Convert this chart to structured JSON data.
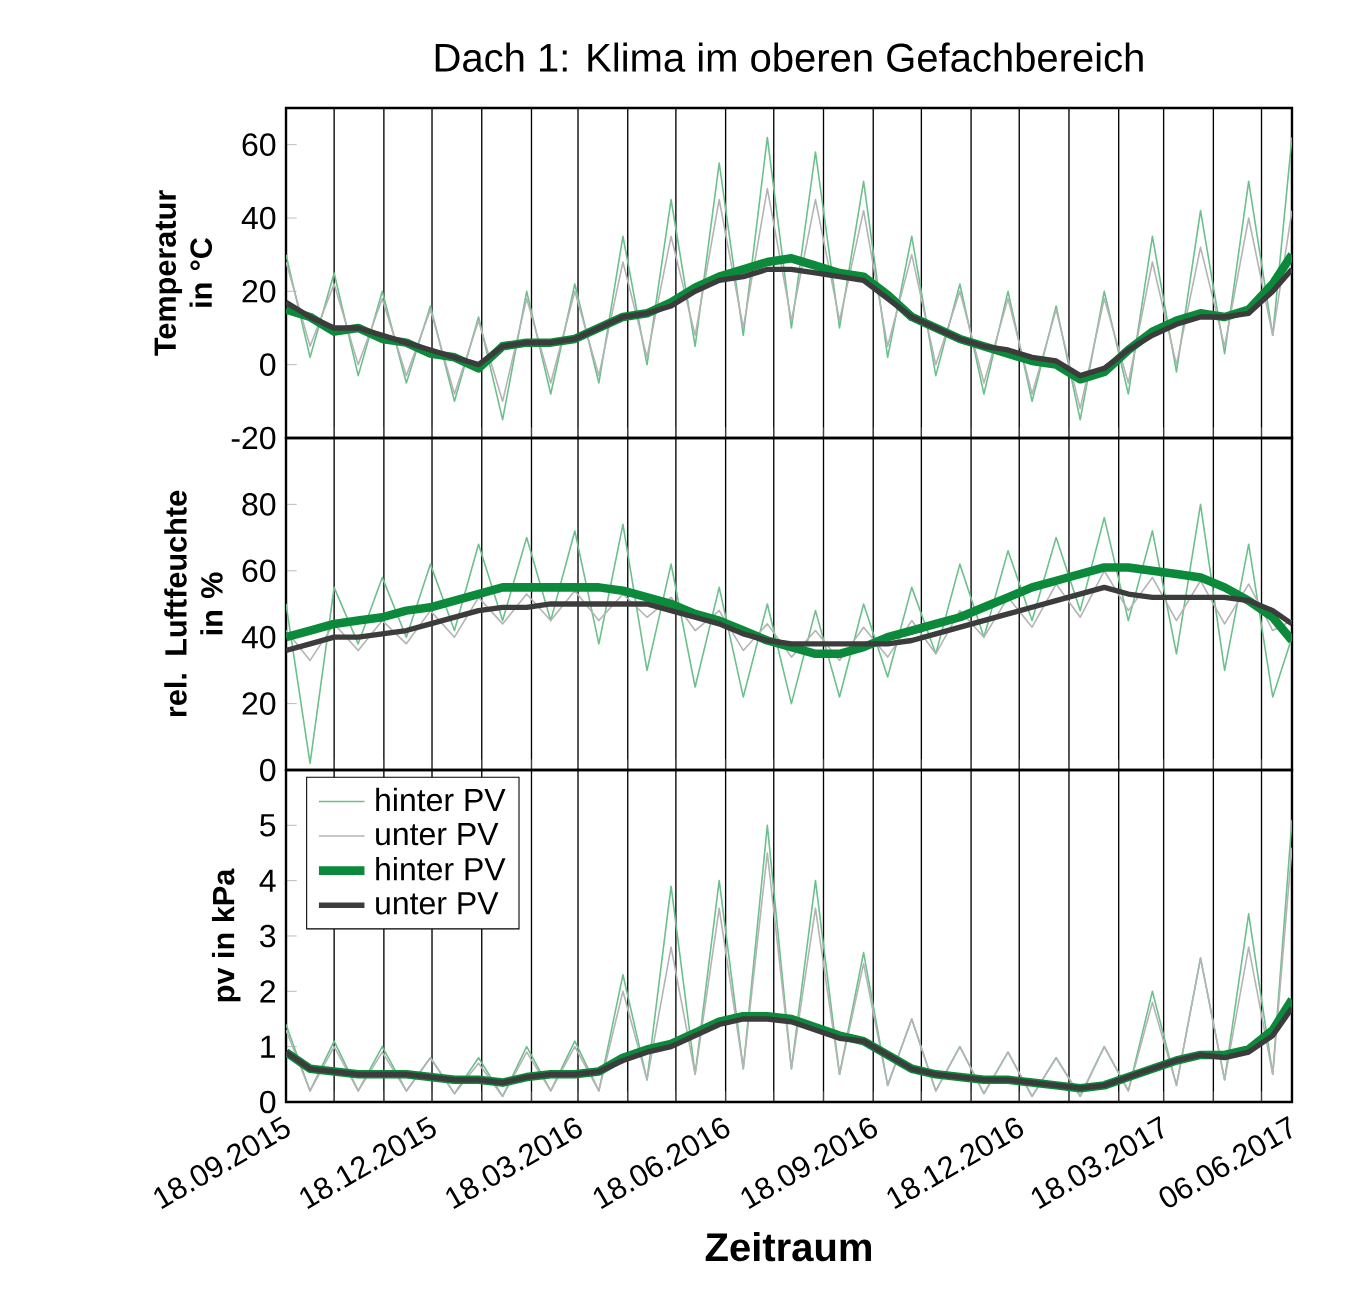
{
  "chart_data": [
    {
      "type": "line",
      "title": "Dach 1: Klima im oberen Gefachbereich",
      "ylabel": "Temperatur in °C",
      "x": [
        "2015-09-18",
        "2015-10-03",
        "2015-10-18",
        "2015-11-02",
        "2015-11-17",
        "2015-12-02",
        "2015-12-17",
        "2016-01-01",
        "2016-01-16",
        "2016-01-31",
        "2016-02-15",
        "2016-03-01",
        "2016-03-16",
        "2016-03-31",
        "2016-04-15",
        "2016-04-30",
        "2016-05-15",
        "2016-05-30",
        "2016-06-14",
        "2016-06-29",
        "2016-07-14",
        "2016-07-29",
        "2016-08-13",
        "2016-08-28",
        "2016-09-12",
        "2016-09-27",
        "2016-10-12",
        "2016-10-27",
        "2016-11-11",
        "2016-11-26",
        "2016-12-11",
        "2016-12-26",
        "2017-01-10",
        "2017-01-25",
        "2017-02-09",
        "2017-02-24",
        "2017-03-11",
        "2017-03-26",
        "2017-04-10",
        "2017-04-25",
        "2017-05-10",
        "2017-05-25",
        "2017-06-06"
      ],
      "series": [
        {
          "color": "#6cc08b",
          "values": [
            30,
            2,
            25,
            -3,
            20,
            -5,
            16,
            -10,
            13,
            -15,
            20,
            -8,
            22,
            -5,
            35,
            0,
            45,
            5,
            55,
            8,
            62,
            10,
            58,
            10,
            50,
            2,
            35,
            -3,
            22,
            -8,
            20,
            -10,
            16,
            -15,
            20,
            -8,
            35,
            -2,
            42,
            3,
            50,
            8,
            62
          ]
        },
        {
          "color": "#b4b4b4",
          "values": [
            28,
            5,
            22,
            0,
            18,
            -3,
            15,
            -8,
            12,
            -10,
            18,
            -5,
            20,
            -3,
            28,
            2,
            35,
            8,
            45,
            10,
            48,
            12,
            45,
            12,
            42,
            5,
            30,
            0,
            20,
            -5,
            18,
            -8,
            15,
            -12,
            18,
            -5,
            28,
            0,
            32,
            5,
            40,
            8,
            42
          ]
        },
        {
          "color": "#0a8a3a",
          "values": [
            15,
            13,
            9,
            10,
            7,
            6,
            3,
            2,
            -1,
            5,
            6,
            6,
            7,
            10,
            13,
            14,
            17,
            21,
            24,
            26,
            28,
            29,
            27,
            25,
            24,
            19,
            13,
            10,
            7,
            5,
            3,
            1,
            0,
            -4,
            -2,
            4,
            9,
            12,
            14,
            13,
            15,
            22,
            30
          ]
        },
        {
          "color": "#3c3c3c",
          "values": [
            17,
            13,
            10,
            10,
            8,
            6,
            4,
            2,
            0,
            5,
            6,
            6,
            7,
            10,
            13,
            14,
            16,
            20,
            23,
            24,
            26,
            26,
            25,
            24,
            23,
            18,
            13,
            10,
            7,
            5,
            4,
            2,
            1,
            -3,
            -1,
            4,
            8,
            11,
            13,
            13,
            14,
            20,
            26
          ]
        }
      ],
      "xlim": [
        "2015-09-18",
        "2017-06-06"
      ],
      "ylim": [
        -20,
        70
      ],
      "yticks": [
        -20,
        0,
        20,
        40,
        60
      ],
      "xticks": [
        {
          "value": "2015-09-18",
          "label": null
        },
        {
          "value": "2015-10-18",
          "label": null
        },
        {
          "value": "2015-11-18",
          "label": null
        },
        {
          "value": "2015-12-18",
          "label": null
        },
        {
          "value": "2016-01-18",
          "label": null
        },
        {
          "value": "2016-02-18",
          "label": null
        },
        {
          "value": "2016-03-18",
          "label": null
        },
        {
          "value": "2016-04-18",
          "label": null
        },
        {
          "value": "2016-05-18",
          "label": null
        },
        {
          "value": "2016-06-18",
          "label": null
        },
        {
          "value": "2016-07-18",
          "label": null
        },
        {
          "value": "2016-08-18",
          "label": null
        },
        {
          "value": "2016-09-18",
          "label": null
        },
        {
          "value": "2016-10-18",
          "label": null
        },
        {
          "value": "2016-11-18",
          "label": null
        },
        {
          "value": "2016-12-18",
          "label": null
        },
        {
          "value": "2017-01-18",
          "label": null
        },
        {
          "value": "2017-02-18",
          "label": null
        },
        {
          "value": "2017-03-18",
          "label": null
        },
        {
          "value": "2017-04-18",
          "label": null
        },
        {
          "value": "2017-05-18",
          "label": null
        },
        {
          "value": "2017-06-06",
          "label": null
        }
      ],
      "grid": "x",
      "tick_labels": "y"
    },
    {
      "type": "line",
      "ylabel": "rel. Luftfeuchte in %",
      "x": [
        "2015-09-18",
        "2015-10-03",
        "2015-10-18",
        "2015-11-02",
        "2015-11-17",
        "2015-12-02",
        "2015-12-17",
        "2016-01-01",
        "2016-01-16",
        "2016-01-31",
        "2016-02-15",
        "2016-03-01",
        "2016-03-16",
        "2016-03-31",
        "2016-04-15",
        "2016-04-30",
        "2016-05-15",
        "2016-05-30",
        "2016-06-14",
        "2016-06-29",
        "2016-07-14",
        "2016-07-29",
        "2016-08-13",
        "2016-08-28",
        "2016-09-12",
        "2016-09-27",
        "2016-10-12",
        "2016-10-27",
        "2016-11-11",
        "2016-11-26",
        "2016-12-11",
        "2016-12-26",
        "2017-01-10",
        "2017-01-25",
        "2017-02-09",
        "2017-02-24",
        "2017-03-11",
        "2017-03-26",
        "2017-04-10",
        "2017-04-25",
        "2017-05-10",
        "2017-05-25",
        "2017-06-06"
      ],
      "series": [
        {
          "color": "#6cc08b",
          "values": [
            50,
            2,
            55,
            38,
            58,
            40,
            62,
            42,
            68,
            45,
            70,
            45,
            72,
            38,
            74,
            30,
            62,
            25,
            55,
            22,
            50,
            20,
            48,
            22,
            50,
            28,
            55,
            35,
            62,
            40,
            66,
            45,
            70,
            48,
            76,
            45,
            72,
            35,
            80,
            30,
            68,
            22,
            40
          ]
        },
        {
          "color": "#b4b4b4",
          "values": [
            42,
            33,
            44,
            36,
            45,
            38,
            48,
            40,
            52,
            44,
            53,
            45,
            54,
            45,
            53,
            46,
            52,
            42,
            48,
            36,
            44,
            34,
            42,
            33,
            43,
            34,
            45,
            35,
            48,
            40,
            52,
            43,
            56,
            46,
            60,
            48,
            58,
            45,
            57,
            44,
            56,
            42,
            45
          ]
        },
        {
          "color": "#0a8a3a",
          "values": [
            40,
            42,
            44,
            45,
            46,
            48,
            49,
            51,
            53,
            55,
            55,
            55,
            55,
            55,
            54,
            52,
            50,
            47,
            45,
            42,
            39,
            37,
            35,
            35,
            37,
            40,
            42,
            44,
            46,
            49,
            52,
            55,
            57,
            59,
            61,
            61,
            60,
            59,
            58,
            55,
            51,
            46,
            39
          ]
        },
        {
          "color": "#3c3c3c",
          "values": [
            36,
            38,
            40,
            40,
            41,
            42,
            44,
            46,
            48,
            49,
            49,
            50,
            50,
            50,
            50,
            50,
            48,
            46,
            44,
            41,
            39,
            38,
            38,
            38,
            38,
            38,
            39,
            41,
            43,
            45,
            47,
            49,
            51,
            53,
            55,
            53,
            52,
            52,
            52,
            52,
            51,
            48,
            44
          ]
        }
      ],
      "xlim": [
        "2015-09-18",
        "2017-06-06"
      ],
      "ylim": [
        0,
        100
      ],
      "yticks": [
        0,
        20,
        40,
        60,
        80
      ],
      "xticks": [
        {
          "value": "2015-09-18",
          "label": null
        },
        {
          "value": "2015-10-18",
          "label": null
        },
        {
          "value": "2015-11-18",
          "label": null
        },
        {
          "value": "2015-12-18",
          "label": null
        },
        {
          "value": "2016-01-18",
          "label": null
        },
        {
          "value": "2016-02-18",
          "label": null
        },
        {
          "value": "2016-03-18",
          "label": null
        },
        {
          "value": "2016-04-18",
          "label": null
        },
        {
          "value": "2016-05-18",
          "label": null
        },
        {
          "value": "2016-06-18",
          "label": null
        },
        {
          "value": "2016-07-18",
          "label": null
        },
        {
          "value": "2016-08-18",
          "label": null
        },
        {
          "value": "2016-09-18",
          "label": null
        },
        {
          "value": "2016-10-18",
          "label": null
        },
        {
          "value": "2016-11-18",
          "label": null
        },
        {
          "value": "2016-12-18",
          "label": null
        },
        {
          "value": "2017-01-18",
          "label": null
        },
        {
          "value": "2017-02-18",
          "label": null
        },
        {
          "value": "2017-03-18",
          "label": null
        },
        {
          "value": "2017-04-18",
          "label": null
        },
        {
          "value": "2017-05-18",
          "label": null
        },
        {
          "value": "2017-06-06",
          "label": null
        }
      ],
      "grid": "x",
      "tick_labels": "y"
    },
    {
      "type": "line",
      "xlabel": "Zeitraum",
      "ylabel": "pv in kPa",
      "x": [
        "2015-09-18",
        "2015-10-03",
        "2015-10-18",
        "2015-11-02",
        "2015-11-17",
        "2015-12-02",
        "2015-12-17",
        "2016-01-01",
        "2016-01-16",
        "2016-01-31",
        "2016-02-15",
        "2016-03-01",
        "2016-03-16",
        "2016-03-31",
        "2016-04-15",
        "2016-04-30",
        "2016-05-15",
        "2016-05-30",
        "2016-06-14",
        "2016-06-29",
        "2016-07-14",
        "2016-07-29",
        "2016-08-13",
        "2016-08-28",
        "2016-09-12",
        "2016-09-27",
        "2016-10-12",
        "2016-10-27",
        "2016-11-11",
        "2016-11-26",
        "2016-12-11",
        "2016-12-26",
        "2017-01-10",
        "2017-01-25",
        "2017-02-09",
        "2017-02-24",
        "2017-03-11",
        "2017-03-26",
        "2017-04-10",
        "2017-04-25",
        "2017-05-10",
        "2017-05-25",
        "2017-06-06"
      ],
      "series": [
        {
          "name": "hinter PV",
          "color": "#6cc08b",
          "values": [
            1.4,
            0.2,
            1.1,
            0.2,
            1.0,
            0.2,
            0.8,
            0.15,
            0.8,
            0.1,
            1.0,
            0.2,
            1.1,
            0.2,
            2.3,
            0.4,
            3.9,
            0.5,
            4.0,
            0.6,
            5.0,
            0.6,
            4.0,
            0.5,
            2.7,
            0.3,
            1.5,
            0.2,
            1.0,
            0.15,
            0.9,
            0.1,
            0.8,
            0.1,
            1.0,
            0.2,
            2.0,
            0.3,
            2.6,
            0.4,
            3.4,
            0.5,
            5.1
          ]
        },
        {
          "name": "unter PV",
          "color": "#b4b4b4",
          "values": [
            1.3,
            0.2,
            1.0,
            0.2,
            0.9,
            0.2,
            0.8,
            0.15,
            0.7,
            0.1,
            0.9,
            0.2,
            1.0,
            0.2,
            2.0,
            0.4,
            2.8,
            0.5,
            3.5,
            0.6,
            4.5,
            0.6,
            3.5,
            0.5,
            2.5,
            0.3,
            1.5,
            0.2,
            1.0,
            0.15,
            0.9,
            0.1,
            0.8,
            0.1,
            1.0,
            0.2,
            1.8,
            0.3,
            2.6,
            0.4,
            2.8,
            0.5,
            4.6
          ]
        },
        {
          "name": "hinter PV",
          "color": "#0a8a3a",
          "values": [
            0.9,
            0.6,
            0.55,
            0.5,
            0.5,
            0.5,
            0.45,
            0.4,
            0.4,
            0.35,
            0.45,
            0.5,
            0.5,
            0.55,
            0.8,
            0.95,
            1.05,
            1.25,
            1.45,
            1.55,
            1.55,
            1.5,
            1.35,
            1.2,
            1.1,
            0.85,
            0.6,
            0.5,
            0.45,
            0.4,
            0.4,
            0.35,
            0.3,
            0.25,
            0.3,
            0.45,
            0.6,
            0.75,
            0.85,
            0.85,
            0.95,
            1.3,
            1.85
          ]
        },
        {
          "name": "unter PV",
          "color": "#3c3c3c",
          "values": [
            0.9,
            0.6,
            0.55,
            0.5,
            0.5,
            0.5,
            0.45,
            0.4,
            0.4,
            0.35,
            0.45,
            0.5,
            0.5,
            0.55,
            0.75,
            0.9,
            1.0,
            1.2,
            1.4,
            1.5,
            1.5,
            1.45,
            1.3,
            1.15,
            1.1,
            0.85,
            0.6,
            0.5,
            0.45,
            0.4,
            0.4,
            0.35,
            0.3,
            0.25,
            0.3,
            0.45,
            0.6,
            0.75,
            0.85,
            0.8,
            0.9,
            1.2,
            1.7
          ]
        }
      ],
      "xlim": [
        "2015-09-18",
        "2017-06-06"
      ],
      "ylim": [
        0,
        6
      ],
      "yticks": [
        0,
        1,
        2,
        3,
        4,
        5
      ],
      "xticks": [
        {
          "value": "2015-09-18",
          "label": "18.09.2015"
        },
        {
          "value": "2015-10-18",
          "label": null
        },
        {
          "value": "2015-11-18",
          "label": null
        },
        {
          "value": "2015-12-18",
          "label": "18.12.2015"
        },
        {
          "value": "2016-01-18",
          "label": null
        },
        {
          "value": "2016-02-18",
          "label": null
        },
        {
          "value": "2016-03-18",
          "label": "18.03.2016"
        },
        {
          "value": "2016-04-18",
          "label": null
        },
        {
          "value": "2016-05-18",
          "label": null
        },
        {
          "value": "2016-06-18",
          "label": "18.06.2016"
        },
        {
          "value": "2016-07-18",
          "label": null
        },
        {
          "value": "2016-08-18",
          "label": null
        },
        {
          "value": "2016-09-18",
          "label": "18.09.2016"
        },
        {
          "value": "2016-10-18",
          "label": null
        },
        {
          "value": "2016-11-18",
          "label": null
        },
        {
          "value": "2016-12-18",
          "label": "18.12.2016"
        },
        {
          "value": "2017-01-18",
          "label": null
        },
        {
          "value": "2017-02-18",
          "label": null
        },
        {
          "value": "2017-03-18",
          "label": "18.03.2017"
        },
        {
          "value": "2017-04-18",
          "label": null
        },
        {
          "value": "2017-05-18",
          "label": null
        },
        {
          "value": "2017-06-06",
          "label": "06.06.2017"
        }
      ],
      "grid": "x",
      "legend": "top left"
    }
  ]
}
